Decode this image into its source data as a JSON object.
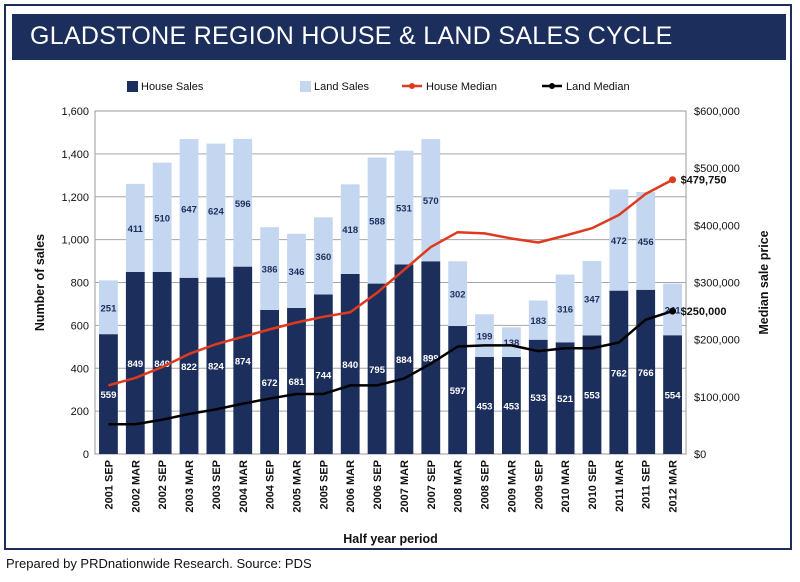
{
  "chart_data": {
    "type": "bar",
    "title": "GLADSTONE REGION HOUSE & LAND SALES CYCLE",
    "xlabel": "Half year period",
    "ylabel": "Number of sales",
    "y2label": "Median sale price",
    "ylim": [
      0,
      1600
    ],
    "y2lim": [
      0,
      600000
    ],
    "yticks": [
      "0",
      "200",
      "400",
      "600",
      "800",
      "1,000",
      "1,200",
      "1,400",
      "1,600"
    ],
    "y2ticks": [
      "$0",
      "$100,000",
      "$200,000",
      "$300,000",
      "$400,000",
      "$500,000",
      "$600,000"
    ],
    "grid": true,
    "legend_position": "top",
    "categories": [
      "2001 SEP",
      "2002 MAR",
      "2002 SEP",
      "2003 MAR",
      "2003 SEP",
      "2004 MAR",
      "2004 SEP",
      "2005 MAR",
      "2005 SEP",
      "2006 MAR",
      "2006 SEP",
      "2007 MAR",
      "2007 SEP",
      "2008 MAR",
      "2008 SEP",
      "2009 MAR",
      "2009 SEP",
      "2010 MAR",
      "2010 SEP",
      "2011 MAR",
      "2011 SEP",
      "2012 MAR"
    ],
    "series": [
      {
        "name": "House Sales",
        "kind": "bar",
        "stack": "sales",
        "axis": "left",
        "color": "#1c2f5c",
        "values": [
          559,
          849,
          849,
          822,
          824,
          874,
          672,
          681,
          744,
          840,
          795,
          884,
          899,
          597,
          453,
          453,
          533,
          521,
          553,
          762,
          766,
          554
        ]
      },
      {
        "name": "Land Sales",
        "kind": "bar",
        "stack": "sales",
        "axis": "left",
        "color": "#c5d7f0",
        "values": [
          251,
          411,
          510,
          647,
          624,
          596,
          386,
          346,
          360,
          418,
          588,
          531,
          570,
          302,
          199,
          138,
          183,
          316,
          347,
          472,
          456,
          241
        ]
      },
      {
        "name": "House Median",
        "kind": "line",
        "axis": "right",
        "color": "#e03a1e",
        "values": [
          120000,
          133000,
          152000,
          175000,
          192000,
          205000,
          218000,
          230000,
          240000,
          248000,
          282000,
          322000,
          362000,
          388000,
          386000,
          377000,
          370000,
          382000,
          395000,
          418000,
          455000,
          479750
        ]
      },
      {
        "name": "Land Median",
        "kind": "line",
        "axis": "right",
        "color": "#000000",
        "values": [
          52000,
          52000,
          60000,
          70000,
          78000,
          88000,
          97000,
          105000,
          105000,
          120000,
          120000,
          132000,
          158000,
          188000,
          190000,
          190000,
          180000,
          185000,
          185000,
          195000,
          235000,
          250000
        ]
      }
    ],
    "annotations": [
      {
        "text": "$479,750",
        "series": "House Median",
        "index": 21
      },
      {
        "text": "$250,000",
        "series": "Land Median",
        "index": 21
      }
    ]
  },
  "footer": "Prepared by PRDnationwide Research. Source: PDS"
}
